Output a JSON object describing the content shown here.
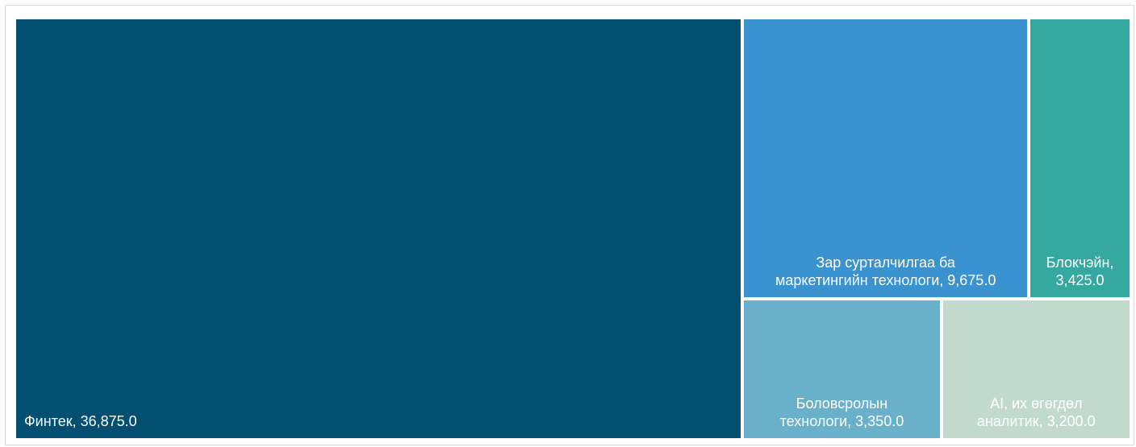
{
  "chart_data": {
    "type": "treemap",
    "title": "",
    "value_format": "#,##0.0",
    "items": [
      {
        "name": "Финтек",
        "value": 36875.0,
        "label_lines": [
          "Финтек,  36,875.0"
        ],
        "color": "#034f72"
      },
      {
        "name": "Зар сурталчилгаа ба маркетингийн технологи",
        "value": 9675.0,
        "label_lines": [
          "Зар сурталчилгаа ба",
          "маркетингийн технологи,  9,675.0"
        ],
        "color": "#3a92cf"
      },
      {
        "name": "Блокчэйн",
        "value": 3425.0,
        "label_lines": [
          "Блокчэйн,",
          "3,425.0"
        ],
        "color": "#35a8a0"
      },
      {
        "name": "Боловсролын технологи",
        "value": 3350.0,
        "label_lines": [
          "Боловсролын",
          "технологи,  3,350.0"
        ],
        "color": "#69b0cb"
      },
      {
        "name": "AI, их өгөгдөл аналитик",
        "value": 3200.0,
        "label_lines": [
          "AI, их өгөгдөл",
          "аналитик,  3,200.0"
        ],
        "color": "#c2d9cd"
      }
    ]
  }
}
